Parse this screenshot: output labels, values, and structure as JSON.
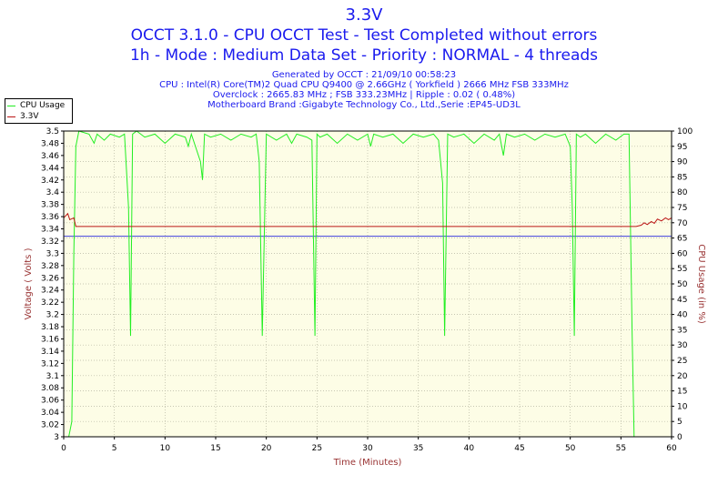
{
  "header": {
    "title": "3.3V",
    "subtitle1": "OCCT 3.1.0 - CPU OCCT Test - Test Completed without errors",
    "subtitle2": "1h - Mode : Medium Data Set - Priority : NORMAL - 4 threads",
    "info": [
      "Generated by OCCT : 21/09/10 00:58:23",
      "CPU : Intel(R) Core(TM)2 Quad CPU Q9400 @ 2.66GHz ( Yorkfield ) 2666 MHz FSB 333MHz",
      "Overclock : 2665.83 MHz ; FSB 333.23MHz | Ripple : 0.02 ( 0.48%)",
      "Motherboard Brand :Gigabyte Technology Co., Ltd.,Serie :EP45-UD3L"
    ]
  },
  "colors": {
    "title": "#1a1aee",
    "plot_bg": "#fdfde6",
    "grid": "#b5b5a0",
    "cpu_usage": "#22ee22",
    "voltage": "#bb1515",
    "avg_line": "#4040dd",
    "axis_label": "#993333"
  },
  "chart_data": {
    "type": "line",
    "xlabel": "Time (Minutes)",
    "ylabel": "Voltage ( Volts )",
    "ylabel_right": "CPU Usage (in %)",
    "xlim": [
      0,
      60
    ],
    "ylim": [
      3.0,
      3.5
    ],
    "ylim_right": [
      0,
      100
    ],
    "x_ticks": [
      0,
      5,
      10,
      15,
      20,
      25,
      30,
      35,
      40,
      45,
      50,
      55,
      60
    ],
    "y_ticks": [
      3,
      3.02,
      3.04,
      3.06,
      3.08,
      3.1,
      3.12,
      3.14,
      3.16,
      3.18,
      3.2,
      3.22,
      3.24,
      3.26,
      3.28,
      3.3,
      3.32,
      3.34,
      3.36,
      3.38,
      3.4,
      3.42,
      3.44,
      3.46,
      3.48,
      3.5
    ],
    "y_ticks_right": [
      0,
      5,
      10,
      15,
      20,
      25,
      30,
      35,
      40,
      45,
      50,
      55,
      60,
      65,
      70,
      75,
      80,
      85,
      90,
      95,
      100
    ],
    "grid": true,
    "legend": [
      "CPU Usage",
      "3.3V"
    ],
    "legend_position": "top-left outside",
    "reference_line": {
      "value": 3.328,
      "axis": "left"
    },
    "series": [
      {
        "name": "CPU Usage",
        "axis": "right",
        "x": [
          0,
          0.5,
          0.8,
          1.0,
          1.2,
          1.5,
          2.5,
          3.0,
          3.3,
          4.0,
          4.6,
          5.5,
          6.0,
          6.4,
          6.6,
          6.8,
          7.2,
          8.0,
          9.0,
          10.0,
          11.0,
          12.0,
          12.3,
          12.6,
          13.5,
          13.7,
          13.9,
          14.5,
          15.5,
          16.5,
          17.5,
          18.5,
          19.0,
          19.3,
          19.6,
          20.0,
          21.0,
          22.0,
          22.5,
          23.0,
          24.0,
          24.5,
          24.8,
          25.0,
          25.3,
          26.0,
          27.0,
          28.0,
          29.0,
          30.0,
          30.3,
          30.6,
          31.5,
          32.5,
          33.5,
          34.5,
          35.5,
          36.5,
          37.0,
          37.4,
          37.6,
          37.9,
          38.5,
          39.5,
          40.5,
          41.5,
          42.5,
          43.0,
          43.4,
          43.7,
          44.5,
          45.5,
          46.5,
          47.5,
          48.5,
          49.5,
          50.0,
          50.2,
          50.4,
          50.6,
          51.0,
          51.5,
          52.5,
          53.5,
          54.5,
          55.3,
          55.8,
          56.1,
          56.3
        ],
        "y": [
          0,
          0,
          5,
          60,
          95,
          100,
          99,
          96,
          99,
          97,
          99,
          98,
          99,
          75,
          33,
          99,
          100,
          98,
          99,
          96,
          99,
          98,
          95,
          99,
          90,
          84,
          99,
          98,
          99,
          97,
          99,
          98,
          99,
          90,
          33,
          99,
          97,
          99,
          96,
          99,
          98,
          97,
          33,
          99,
          98,
          99,
          96,
          99,
          97,
          99,
          95,
          99,
          98,
          99,
          96,
          99,
          98,
          99,
          97,
          83,
          33,
          99,
          98,
          99,
          96,
          99,
          97,
          99,
          92,
          99,
          98,
          99,
          97,
          99,
          98,
          99,
          95,
          75,
          33,
          99,
          98,
          99,
          96,
          99,
          97,
          99,
          99,
          35,
          0
        ]
      },
      {
        "name": "3.3V",
        "axis": "left",
        "x": [
          0,
          0.4,
          0.6,
          1.0,
          1.2,
          2.0,
          10.0,
          20.0,
          30.0,
          40.0,
          50.0,
          55.0,
          56.0,
          56.5,
          57.0,
          57.3,
          57.6,
          58.0,
          58.3,
          58.6,
          59.0,
          59.4,
          59.7,
          60.0
        ],
        "y": [
          3.358,
          3.365,
          3.355,
          3.358,
          3.344,
          3.344,
          3.344,
          3.344,
          3.344,
          3.344,
          3.344,
          3.344,
          3.344,
          3.344,
          3.346,
          3.35,
          3.347,
          3.352,
          3.349,
          3.356,
          3.353,
          3.358,
          3.355,
          3.358
        ]
      }
    ]
  }
}
